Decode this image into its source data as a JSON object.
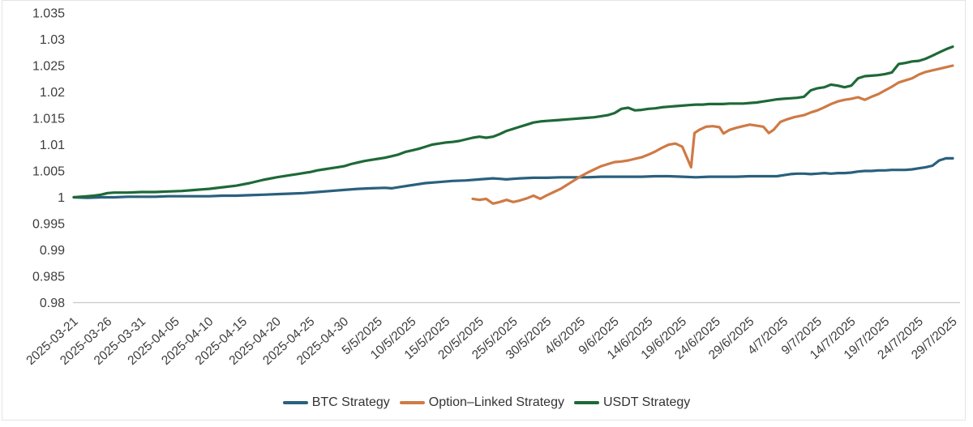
{
  "page": {
    "background": "#ffffff",
    "card_border_color": "#e7e4e2",
    "axis_line_color": "#c9c9c9",
    "tick_text_color": "#3d3d3d",
    "legend_text_color": "#333333"
  },
  "chart_data": {
    "type": "line",
    "x_unit": "days since 2025-03-21 (5-day tick spacing)",
    "x_axis": {
      "tick_day_offsets": [
        0,
        5,
        10,
        15,
        20,
        25,
        30,
        35,
        40,
        45,
        50,
        55,
        60,
        65,
        70,
        75,
        80,
        85,
        90,
        95,
        100,
        105,
        110,
        115,
        120,
        125,
        130
      ],
      "tick_labels": [
        "2025-03-21",
        "2025-03-26",
        "2025-03-31",
        "2025-04-05",
        "2025-04-10",
        "2025-04-15",
        "2025-04-20",
        "2025-04-25",
        "2025-04-30",
        "5/5/2025",
        "10/5/2025",
        "15/5/2025",
        "20/5/2025",
        "25/5/2025",
        "30/5/2025",
        "4/6/2025",
        "9/6/2025",
        "14/6/2025",
        "19/6/2025",
        "24/6/2025",
        "29/6/2025",
        "4/7/2025",
        "9/7/2025",
        "14/7/2025",
        "19/7/2025",
        "24/7/2025",
        "29/7/2025"
      ],
      "label_rotation_deg": -42
    },
    "y_axis": {
      "min": 0.98,
      "max": 1.035,
      "tick_step": 0.005,
      "tick_labels": [
        "1.035",
        "1.03",
        "1.025",
        "1.02",
        "1.015",
        "1.01",
        "1.005",
        "1",
        "0.995",
        "0.99",
        "0.985",
        "0.98"
      ]
    },
    "grid": "none (baseline at 0.98 only)",
    "legend": {
      "position": "bottom-center"
    },
    "series": [
      {
        "name": "BTC Strategy",
        "color": "#2a607e",
        "points": [
          [
            0,
            1.0
          ],
          [
            2,
            0.9999
          ],
          [
            4,
            1.0
          ],
          [
            6,
            1.0
          ],
          [
            8,
            1.0001
          ],
          [
            10,
            1.0001
          ],
          [
            12,
            1.0001
          ],
          [
            14,
            1.0002
          ],
          [
            16,
            1.0002
          ],
          [
            18,
            1.0002
          ],
          [
            20,
            1.0002
          ],
          [
            22,
            1.0003
          ],
          [
            24,
            1.0003
          ],
          [
            26,
            1.0004
          ],
          [
            28,
            1.0005
          ],
          [
            30,
            1.0006
          ],
          [
            32,
            1.0007
          ],
          [
            34,
            1.0008
          ],
          [
            36,
            1.001
          ],
          [
            38,
            1.0012
          ],
          [
            40,
            1.0014
          ],
          [
            42,
            1.0016
          ],
          [
            44,
            1.0017
          ],
          [
            46,
            1.0018
          ],
          [
            47,
            1.0017
          ],
          [
            48,
            1.0019
          ],
          [
            50,
            1.0023
          ],
          [
            52,
            1.0027
          ],
          [
            54,
            1.0029
          ],
          [
            56,
            1.0031
          ],
          [
            58,
            1.0032
          ],
          [
            60,
            1.0034
          ],
          [
            62,
            1.0036
          ],
          [
            63,
            1.0035
          ],
          [
            64,
            1.0034
          ],
          [
            65,
            1.0035
          ],
          [
            66,
            1.0036
          ],
          [
            68,
            1.0037
          ],
          [
            70,
            1.0037
          ],
          [
            72,
            1.0038
          ],
          [
            74,
            1.0038
          ],
          [
            76,
            1.0038
          ],
          [
            78,
            1.0039
          ],
          [
            80,
            1.0039
          ],
          [
            82,
            1.0039
          ],
          [
            84,
            1.0039
          ],
          [
            86,
            1.004
          ],
          [
            88,
            1.004
          ],
          [
            90,
            1.0039
          ],
          [
            92,
            1.0038
          ],
          [
            94,
            1.0039
          ],
          [
            96,
            1.0039
          ],
          [
            98,
            1.0039
          ],
          [
            100,
            1.004
          ],
          [
            102,
            1.004
          ],
          [
            104,
            1.004
          ],
          [
            105,
            1.0042
          ],
          [
            106,
            1.0044
          ],
          [
            107,
            1.0045
          ],
          [
            108,
            1.0045
          ],
          [
            109,
            1.0044
          ],
          [
            110,
            1.0045
          ],
          [
            111,
            1.0046
          ],
          [
            112,
            1.0045
          ],
          [
            113,
            1.0046
          ],
          [
            114,
            1.0046
          ],
          [
            115,
            1.0047
          ],
          [
            116,
            1.0049
          ],
          [
            117,
            1.005
          ],
          [
            118,
            1.005
          ],
          [
            119,
            1.0051
          ],
          [
            120,
            1.0051
          ],
          [
            121,
            1.0052
          ],
          [
            122,
            1.0052
          ],
          [
            123,
            1.0052
          ],
          [
            124,
            1.0053
          ],
          [
            125,
            1.0055
          ],
          [
            126,
            1.0057
          ],
          [
            127,
            1.006
          ],
          [
            128,
            1.007
          ],
          [
            129,
            1.0074
          ],
          [
            130,
            1.0074
          ]
        ]
      },
      {
        "name": "Option–Linked Strategy",
        "color": "#cf7a45",
        "points": [
          [
            59,
            0.9997
          ],
          [
            60,
            0.9995
          ],
          [
            61,
            0.9997
          ],
          [
            62,
            0.9988
          ],
          [
            63,
            0.9991
          ],
          [
            64,
            0.9995
          ],
          [
            65,
            0.9991
          ],
          [
            66,
            0.9994
          ],
          [
            67,
            0.9998
          ],
          [
            68,
            1.0003
          ],
          [
            69,
            0.9997
          ],
          [
            70,
            1.0004
          ],
          [
            71,
            1.001
          ],
          [
            72,
            1.0016
          ],
          [
            73,
            1.0024
          ],
          [
            74,
            1.0032
          ],
          [
            75,
            1.004
          ],
          [
            76,
            1.0047
          ],
          [
            77,
            1.0053
          ],
          [
            78,
            1.0059
          ],
          [
            79,
            1.0063
          ],
          [
            80,
            1.0067
          ],
          [
            81,
            1.0068
          ],
          [
            82,
            1.007
          ],
          [
            83,
            1.0073
          ],
          [
            84,
            1.0076
          ],
          [
            85,
            1.0081
          ],
          [
            86,
            1.0087
          ],
          [
            87,
            1.0094
          ],
          [
            88,
            1.01
          ],
          [
            89,
            1.0102
          ],
          [
            90,
            1.0096
          ],
          [
            91.3,
            1.0057
          ],
          [
            91.8,
            1.0122
          ],
          [
            92.5,
            1.0128
          ],
          [
            93.5,
            1.0134
          ],
          [
            94.5,
            1.0135
          ],
          [
            95.5,
            1.0133
          ],
          [
            96.1,
            1.0121
          ],
          [
            97,
            1.0128
          ],
          [
            98,
            1.0132
          ],
          [
            99,
            1.0135
          ],
          [
            100,
            1.0138
          ],
          [
            101,
            1.0136
          ],
          [
            102,
            1.0134
          ],
          [
            102.8,
            1.0122
          ],
          [
            103.5,
            1.0128
          ],
          [
            104.5,
            1.0143
          ],
          [
            105.5,
            1.0148
          ],
          [
            106.5,
            1.0152
          ],
          [
            108,
            1.0156
          ],
          [
            109,
            1.0161
          ],
          [
            110,
            1.0165
          ],
          [
            111,
            1.0171
          ],
          [
            112,
            1.0177
          ],
          [
            113,
            1.0182
          ],
          [
            114,
            1.0185
          ],
          [
            115,
            1.0187
          ],
          [
            116,
            1.019
          ],
          [
            117,
            1.0185
          ],
          [
            118,
            1.0191
          ],
          [
            119,
            1.0196
          ],
          [
            120,
            1.0203
          ],
          [
            121,
            1.021
          ],
          [
            122,
            1.0218
          ],
          [
            123,
            1.0222
          ],
          [
            124,
            1.0226
          ],
          [
            125,
            1.0233
          ],
          [
            126,
            1.0238
          ],
          [
            127,
            1.0241
          ],
          [
            128,
            1.0244
          ],
          [
            129,
            1.0247
          ],
          [
            130,
            1.025
          ]
        ]
      },
      {
        "name": "USDT Strategy",
        "color": "#1e6937",
        "points": [
          [
            0,
            1.0
          ],
          [
            1,
            1.0001
          ],
          [
            2,
            1.0002
          ],
          [
            3,
            1.0003
          ],
          [
            4,
            1.0005
          ],
          [
            5,
            1.0008
          ],
          [
            6,
            1.0009
          ],
          [
            8,
            1.0009
          ],
          [
            10,
            1.001
          ],
          [
            12,
            1.001
          ],
          [
            14,
            1.0011
          ],
          [
            16,
            1.0012
          ],
          [
            18,
            1.0014
          ],
          [
            20,
            1.0016
          ],
          [
            22,
            1.0019
          ],
          [
            24,
            1.0022
          ],
          [
            26,
            1.0027
          ],
          [
            28,
            1.0033
          ],
          [
            30,
            1.0038
          ],
          [
            32,
            1.0042
          ],
          [
            33,
            1.0044
          ],
          [
            34,
            1.0046
          ],
          [
            35,
            1.0048
          ],
          [
            36,
            1.0051
          ],
          [
            37,
            1.0053
          ],
          [
            38,
            1.0055
          ],
          [
            39,
            1.0057
          ],
          [
            40,
            1.0059
          ],
          [
            41,
            1.0063
          ],
          [
            42,
            1.0066
          ],
          [
            43,
            1.0069
          ],
          [
            44,
            1.0071
          ],
          [
            45,
            1.0073
          ],
          [
            46,
            1.0075
          ],
          [
            47,
            1.0078
          ],
          [
            48,
            1.0081
          ],
          [
            49,
            1.0086
          ],
          [
            50,
            1.0089
          ],
          [
            51,
            1.0092
          ],
          [
            52,
            1.0096
          ],
          [
            53,
            1.01
          ],
          [
            54,
            1.0102
          ],
          [
            55,
            1.0104
          ],
          [
            56,
            1.0105
          ],
          [
            57,
            1.0107
          ],
          [
            58,
            1.011
          ],
          [
            59,
            1.0113
          ],
          [
            60,
            1.0115
          ],
          [
            61,
            1.0113
          ],
          [
            62,
            1.0115
          ],
          [
            63,
            1.012
          ],
          [
            64,
            1.0126
          ],
          [
            65,
            1.013
          ],
          [
            66,
            1.0134
          ],
          [
            67,
            1.0138
          ],
          [
            68,
            1.0142
          ],
          [
            69,
            1.0144
          ],
          [
            70,
            1.0145
          ],
          [
            71,
            1.0146
          ],
          [
            72,
            1.0147
          ],
          [
            73,
            1.0148
          ],
          [
            74,
            1.0149
          ],
          [
            75,
            1.015
          ],
          [
            76,
            1.0151
          ],
          [
            77,
            1.0152
          ],
          [
            78,
            1.0154
          ],
          [
            79,
            1.0156
          ],
          [
            80,
            1.016
          ],
          [
            81,
            1.0168
          ],
          [
            82,
            1.017
          ],
          [
            83,
            1.0165
          ],
          [
            84,
            1.0166
          ],
          [
            85,
            1.0168
          ],
          [
            86,
            1.0169
          ],
          [
            87,
            1.0171
          ],
          [
            88,
            1.0172
          ],
          [
            89,
            1.0173
          ],
          [
            90,
            1.0174
          ],
          [
            91,
            1.0175
          ],
          [
            92,
            1.0176
          ],
          [
            93,
            1.0176
          ],
          [
            94,
            1.0177
          ],
          [
            95,
            1.0177
          ],
          [
            96,
            1.0177
          ],
          [
            97,
            1.0178
          ],
          [
            98,
            1.0178
          ],
          [
            99,
            1.0178
          ],
          [
            100,
            1.0179
          ],
          [
            101,
            1.018
          ],
          [
            102,
            1.0182
          ],
          [
            103,
            1.0184
          ],
          [
            104,
            1.0186
          ],
          [
            105,
            1.0187
          ],
          [
            106,
            1.0188
          ],
          [
            107,
            1.0189
          ],
          [
            108,
            1.0191
          ],
          [
            109,
            1.0203
          ],
          [
            110,
            1.0207
          ],
          [
            111,
            1.0209
          ],
          [
            112,
            1.0214
          ],
          [
            113,
            1.0212
          ],
          [
            114,
            1.0209
          ],
          [
            115,
            1.0212
          ],
          [
            116,
            1.0226
          ],
          [
            117,
            1.023
          ],
          [
            118,
            1.0231
          ],
          [
            119,
            1.0232
          ],
          [
            120,
            1.0234
          ],
          [
            121,
            1.0237
          ],
          [
            122,
            1.0253
          ],
          [
            123,
            1.0255
          ],
          [
            124,
            1.0258
          ],
          [
            125,
            1.0259
          ],
          [
            126,
            1.0263
          ],
          [
            127,
            1.0269
          ],
          [
            128,
            1.0275
          ],
          [
            129,
            1.0281
          ],
          [
            130,
            1.0286
          ]
        ]
      }
    ]
  }
}
